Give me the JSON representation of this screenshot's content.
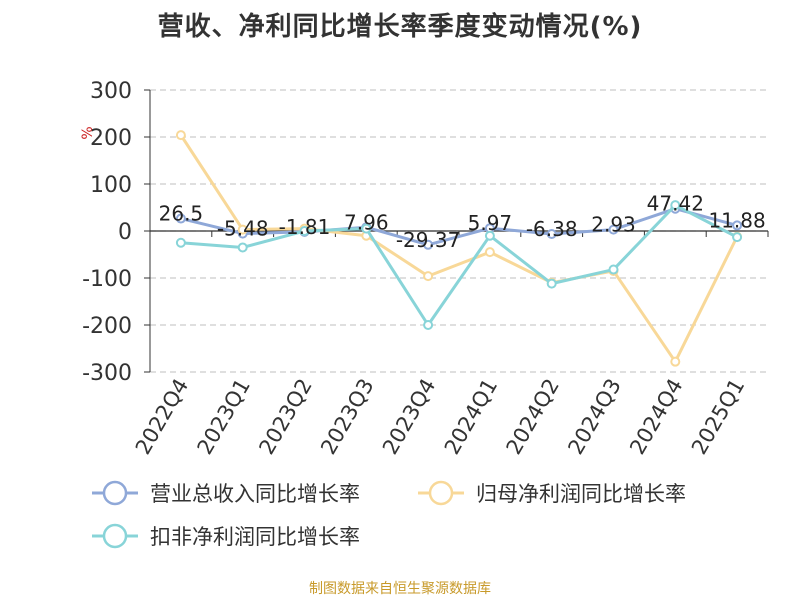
{
  "chart_data": {
    "type": "line",
    "title": "营收、净利同比增长率季度变动情况(%)",
    "ylabel": "%",
    "categories": [
      "2022Q4",
      "2023Q1",
      "2023Q2",
      "2023Q3",
      "2023Q4",
      "2024Q1",
      "2024Q2",
      "2024Q3",
      "2024Q4",
      "2025Q1"
    ],
    "ylim": [
      -300,
      300
    ],
    "yticks": [
      300,
      200,
      100,
      0,
      -100,
      -200,
      -300
    ],
    "grid": true,
    "legend_position": "bottom",
    "series": [
      {
        "name": "营业总收入同比增长率",
        "color": "#8fa8d8",
        "values": [
          26.5,
          -5.48,
          -1.81,
          7.96,
          -29.37,
          5.97,
          -6.38,
          2.93,
          47.42,
          11.88
        ],
        "labels": [
          "26.5",
          "-5.48",
          "-1.81",
          "7.96",
          "-29.37",
          "5.97",
          "-6.38",
          "2.93",
          "47.42",
          "11.88"
        ]
      },
      {
        "name": "归母净利润同比增长率",
        "color": "#f8d898",
        "values": [
          204,
          3,
          5,
          -10,
          -96,
          -45,
          -110,
          -85,
          -278,
          -12
        ]
      },
      {
        "name": "扣非净利润同比增长率",
        "color": "#88d4d8",
        "values": [
          -25,
          -35,
          0,
          5,
          -200,
          -10,
          -112,
          -82,
          55,
          -13
        ]
      }
    ]
  },
  "source": "制图数据来自恒生聚源数据库"
}
